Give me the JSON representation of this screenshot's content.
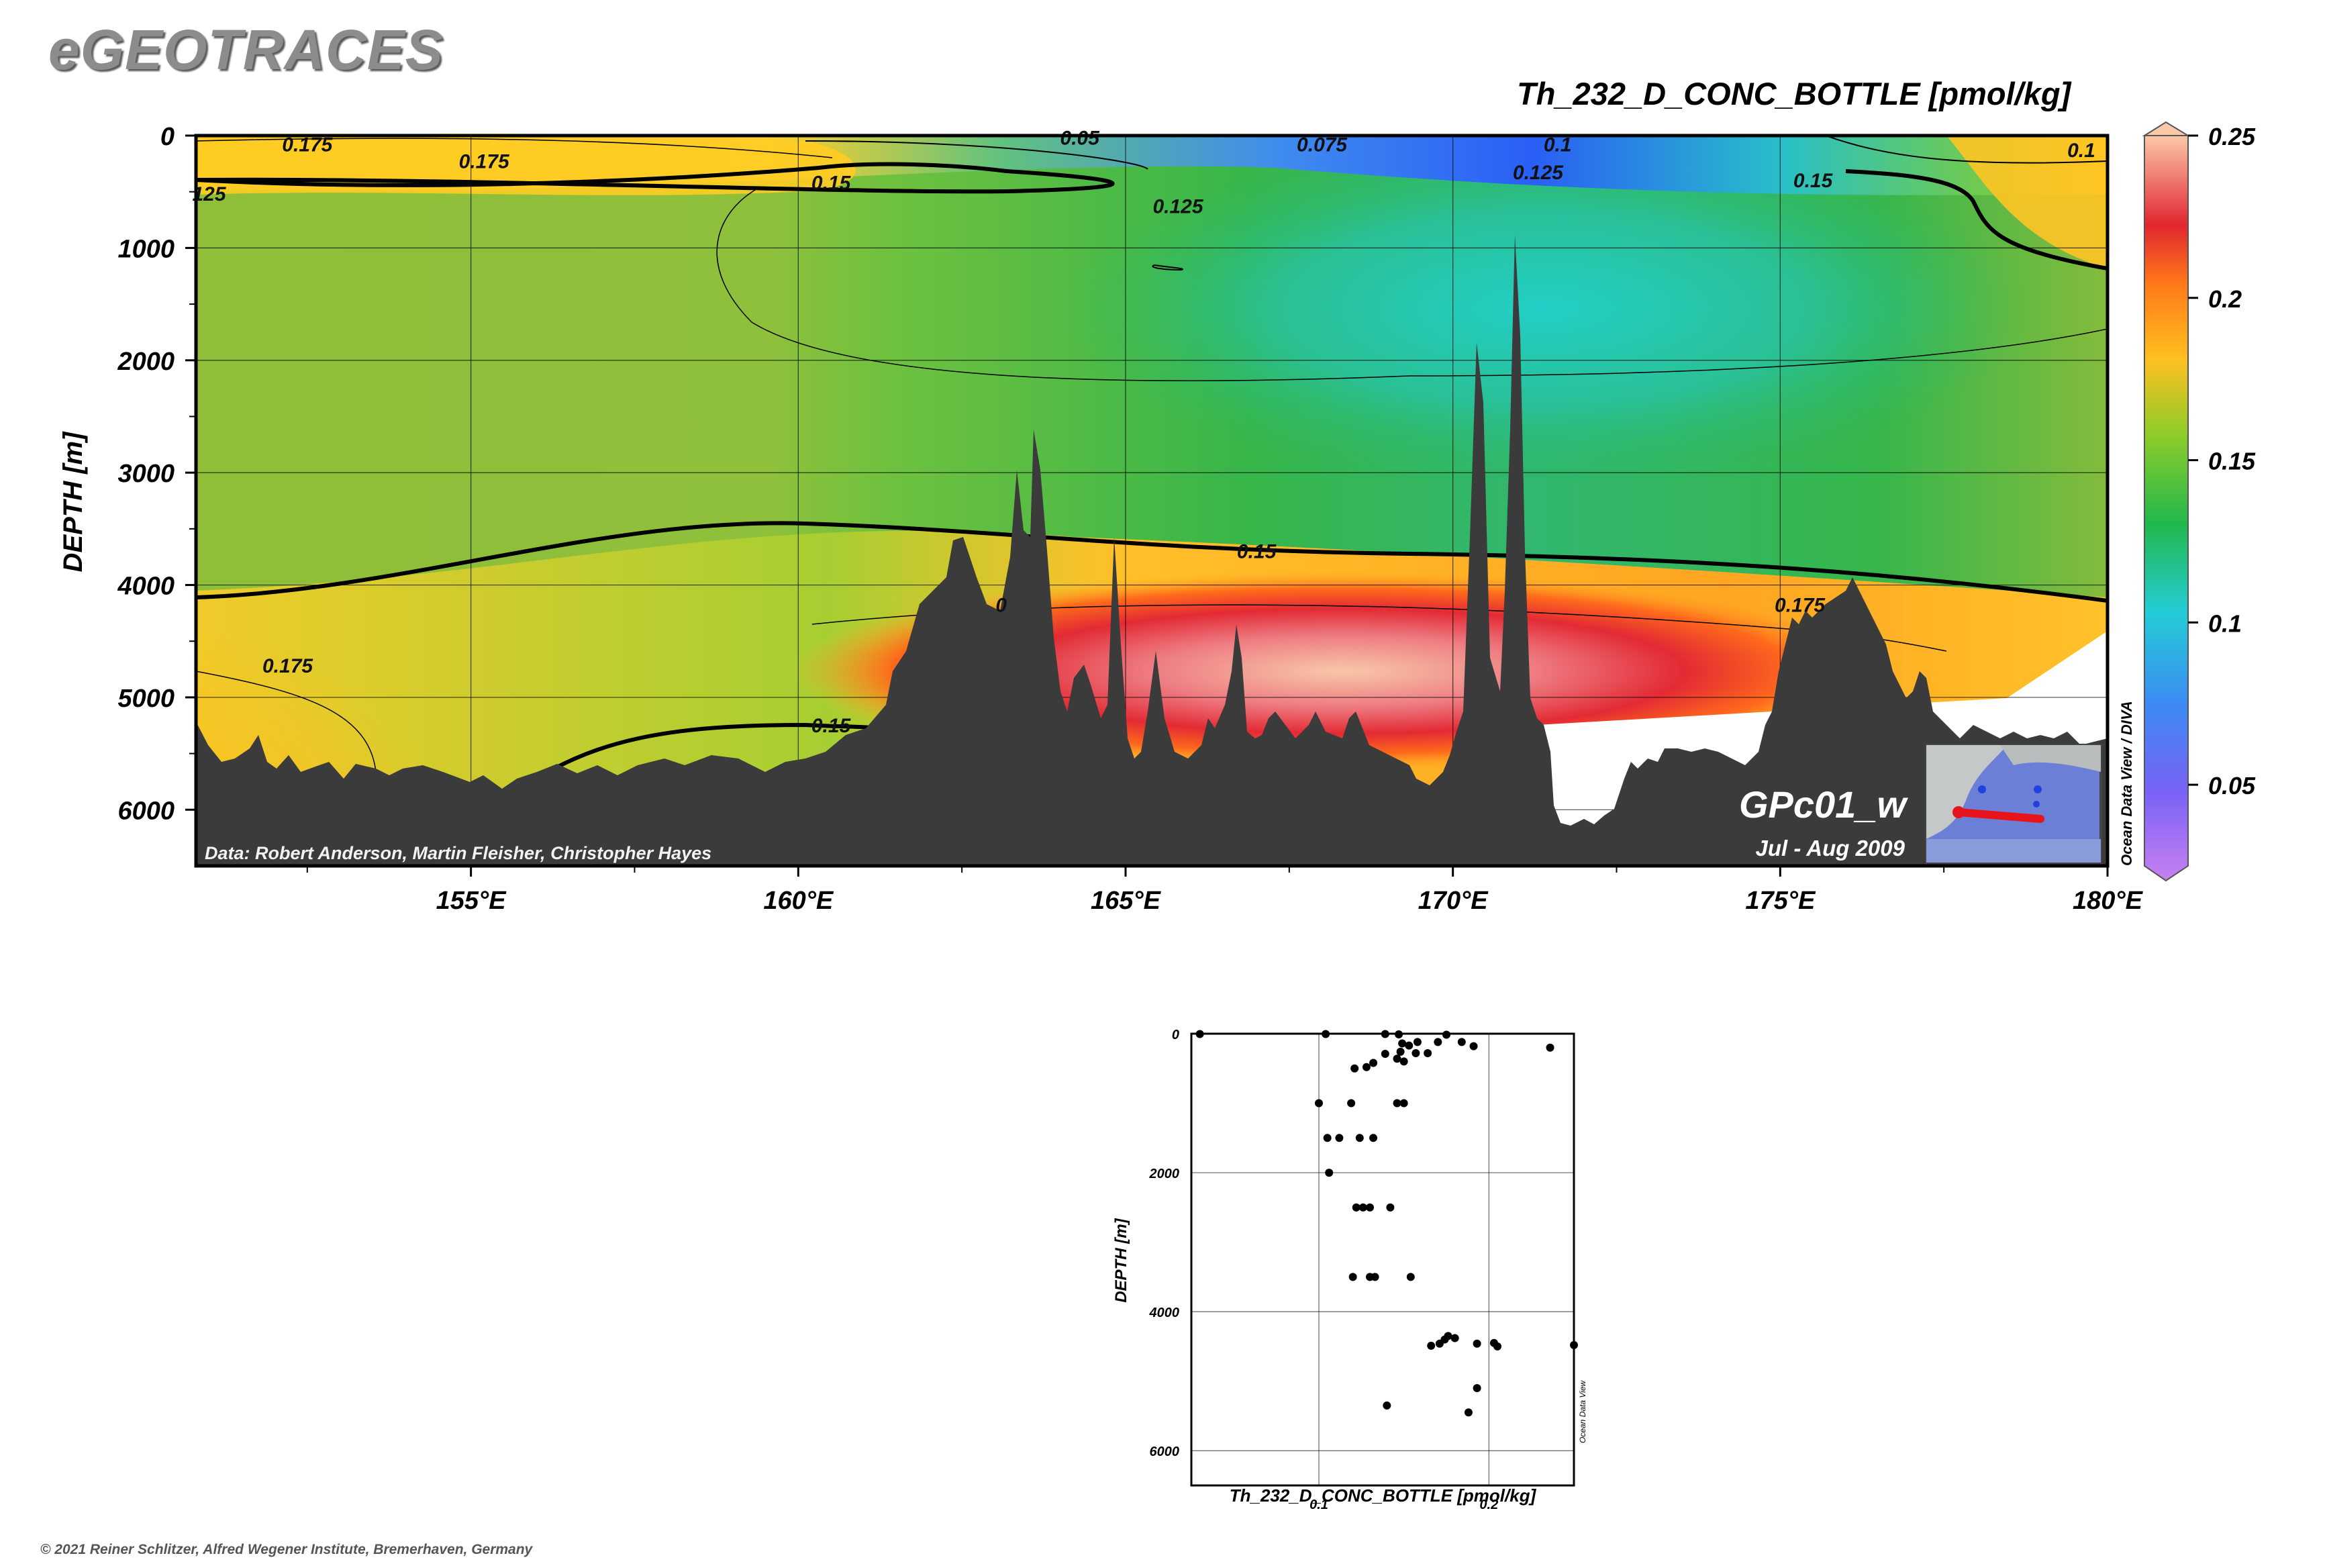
{
  "header": {
    "brand": "eGEOTRACES",
    "variable_title": "Th_232_D_CONC_BOTTLE [pmol/kg]"
  },
  "footer": {
    "copyright": "© 2021 Reiner Schlitzer, Alfred Wegener Institute, Bremerhaven, Germany"
  },
  "section": {
    "credit": "Data: Robert Anderson, Martin Fleisher, Christopher Hayes",
    "cruise": "GPc01_w",
    "period": "Jul - Aug 2009",
    "side_label": "Ocean Data View / DIVA",
    "colors": {
      "ocean_floor": "#3b3b3b",
      "colormap": [
        "#b070f0",
        "#5a6ef5",
        "#24c8d8",
        "#26b43c",
        "#a9cd2e",
        "#ffc020",
        "#ff7a1a",
        "#e42a30",
        "#f6b8a0"
      ]
    }
  },
  "chart_data": [
    {
      "type": "heatmap",
      "title": "Th_232_D_CONC_BOTTLE [pmol/kg]",
      "xlabel": "",
      "ylabel": "DEPTH [m]",
      "xlim": [
        150.8,
        180
      ],
      "ylim": [
        6500,
        0
      ],
      "x_ticks": [
        155,
        160,
        165,
        170,
        175,
        180
      ],
      "x_tick_labels": [
        "155°E",
        "160°E",
        "165°E",
        "170°E",
        "175°E",
        "180°E"
      ],
      "y_ticks": [
        0,
        1000,
        2000,
        3000,
        4000,
        5000,
        6000
      ],
      "y_tick_labels": [
        "0",
        "1000",
        "2000",
        "3000",
        "4000",
        "5000",
        "6000"
      ],
      "grid": true,
      "colorbar": {
        "min": 0.025,
        "max": 0.25,
        "ticks": [
          0.05,
          0.1,
          0.15,
          0.2,
          0.25
        ],
        "tick_labels": [
          "0.05",
          "0.1",
          "0.15",
          "0.2",
          "0.25"
        ]
      },
      "contour_labels": [
        {
          "text": "0.175",
          "x": 152.5,
          "y": 80
        },
        {
          "text": "0.175",
          "x": 155.2,
          "y": 230
        },
        {
          "text": "125",
          "x": 151.0,
          "y": 520
        },
        {
          "text": "0.15",
          "x": 160.5,
          "y": 420
        },
        {
          "text": "0.05",
          "x": 164.3,
          "y": 20
        },
        {
          "text": "0.075",
          "x": 168.0,
          "y": 80
        },
        {
          "text": "0.1",
          "x": 171.6,
          "y": 80
        },
        {
          "text": "0.125",
          "x": 165.8,
          "y": 630
        },
        {
          "text": "0.125",
          "x": 171.3,
          "y": 330
        },
        {
          "text": "0.15",
          "x": 175.5,
          "y": 400
        },
        {
          "text": "0.1",
          "x": 179.6,
          "y": 130
        },
        {
          "text": "0.15",
          "x": 167.0,
          "y": 3700
        },
        {
          "text": "0.175",
          "x": 175.3,
          "y": 4180
        },
        {
          "text": "0.175",
          "x": 152.2,
          "y": 4720
        },
        {
          "text": "0.15",
          "x": 160.5,
          "y": 5250
        },
        {
          "text": "0",
          "x": 163.1,
          "y": 4180
        }
      ]
    },
    {
      "type": "scatter",
      "title": "",
      "xlabel": "Th_232_D_CONC_BOTTLE [pmol/kg]",
      "ylabel": "DEPTH [m]",
      "xlim": [
        0.025,
        0.25
      ],
      "ylim": [
        6500,
        0
      ],
      "x_ticks": [
        0.1,
        0.2
      ],
      "x_tick_labels": [
        "0.1",
        "0.2"
      ],
      "y_ticks": [
        0,
        2000,
        4000,
        6000
      ],
      "y_tick_labels": [
        "0",
        "2000",
        "4000",
        "6000"
      ],
      "grid": true,
      "side_label": "Ocean Data View",
      "points": [
        {
          "x": 0.03,
          "y": 5
        },
        {
          "x": 0.104,
          "y": 5
        },
        {
          "x": 0.139,
          "y": 5
        },
        {
          "x": 0.147,
          "y": 10
        },
        {
          "x": 0.175,
          "y": 15
        },
        {
          "x": 0.158,
          "y": 120
        },
        {
          "x": 0.17,
          "y": 120
        },
        {
          "x": 0.184,
          "y": 120
        },
        {
          "x": 0.191,
          "y": 180
        },
        {
          "x": 0.236,
          "y": 200
        },
        {
          "x": 0.149,
          "y": 140
        },
        {
          "x": 0.153,
          "y": 170
        },
        {
          "x": 0.148,
          "y": 260
        },
        {
          "x": 0.157,
          "y": 280
        },
        {
          "x": 0.164,
          "y": 280
        },
        {
          "x": 0.139,
          "y": 290
        },
        {
          "x": 0.146,
          "y": 360
        },
        {
          "x": 0.15,
          "y": 400
        },
        {
          "x": 0.132,
          "y": 420
        },
        {
          "x": 0.128,
          "y": 480
        },
        {
          "x": 0.121,
          "y": 500
        },
        {
          "x": 0.1,
          "y": 1000
        },
        {
          "x": 0.119,
          "y": 1000
        },
        {
          "x": 0.146,
          "y": 1000
        },
        {
          "x": 0.15,
          "y": 1000
        },
        {
          "x": 0.105,
          "y": 1500
        },
        {
          "x": 0.112,
          "y": 1500
        },
        {
          "x": 0.124,
          "y": 1500
        },
        {
          "x": 0.132,
          "y": 1500
        },
        {
          "x": 0.106,
          "y": 2000
        },
        {
          "x": 0.122,
          "y": 2500
        },
        {
          "x": 0.126,
          "y": 2500
        },
        {
          "x": 0.13,
          "y": 2500
        },
        {
          "x": 0.142,
          "y": 2500
        },
        {
          "x": 0.12,
          "y": 3500
        },
        {
          "x": 0.13,
          "y": 3500
        },
        {
          "x": 0.133,
          "y": 3500
        },
        {
          "x": 0.154,
          "y": 3500
        },
        {
          "x": 0.176,
          "y": 4350
        },
        {
          "x": 0.18,
          "y": 4380
        },
        {
          "x": 0.174,
          "y": 4400
        },
        {
          "x": 0.171,
          "y": 4460
        },
        {
          "x": 0.166,
          "y": 4490
        },
        {
          "x": 0.193,
          "y": 4460
        },
        {
          "x": 0.203,
          "y": 4450
        },
        {
          "x": 0.205,
          "y": 4500
        },
        {
          "x": 0.25,
          "y": 4480
        },
        {
          "x": 0.193,
          "y": 5100
        },
        {
          "x": 0.14,
          "y": 5350
        },
        {
          "x": 0.188,
          "y": 5450
        }
      ]
    }
  ]
}
